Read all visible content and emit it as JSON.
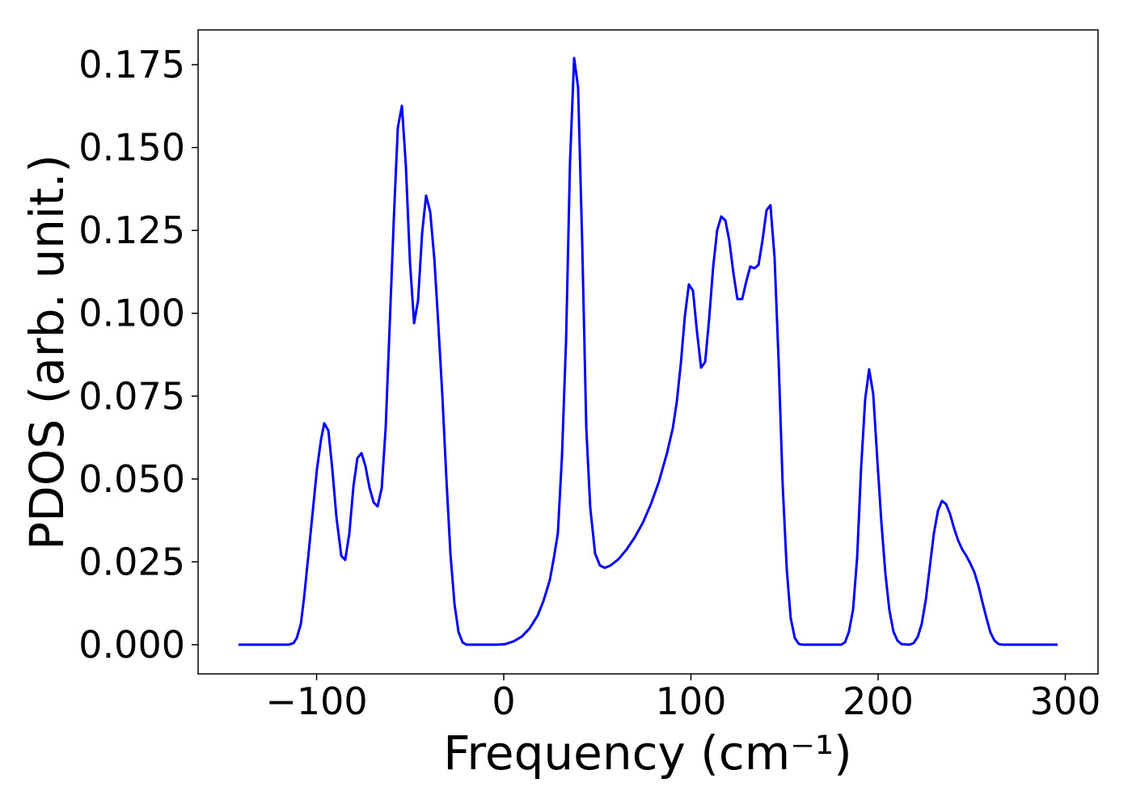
{
  "chart_data": {
    "type": "line",
    "xlabel": "Frequency (cm⁻¹)",
    "ylabel": "PDOS (arb. unit.)",
    "xlim": [
      -163.3,
      317.5
    ],
    "ylim": [
      -0.0088,
      0.1855
    ],
    "xticks": [
      {
        "value": -100,
        "label": "−100"
      },
      0,
      100,
      200,
      300
    ],
    "yticks": [
      {
        "value": 0,
        "label": "0.000"
      },
      0.025,
      {
        "value": 0.05,
        "label": "0.050"
      },
      0.075,
      {
        "value": 0.1,
        "label": "0.100"
      },
      0.125,
      {
        "value": 0.15,
        "label": "0.150"
      },
      0.175
    ],
    "grid": false,
    "series": [
      {
        "color": "#0000ff",
        "x": [
          -141.7,
          -115,
          -112.3,
          -110.6,
          -108.4,
          -106.7,
          -104.5,
          -101.9,
          -99.8,
          -97.6,
          -95.9,
          -93.7,
          -91.6,
          -89.4,
          -86.8,
          -84.7,
          -82.5,
          -80.3,
          -78.2,
          -76.0,
          -73.9,
          -71.7,
          -69.5,
          -67.4,
          -65.2,
          -63.1,
          -60.9,
          -58.7,
          -56.6,
          -54.4,
          -52.3,
          -50.1,
          -47.9,
          -45.8,
          -43.6,
          -41.5,
          -39.3,
          -37.1,
          -35.0,
          -32.8,
          -30.7,
          -28.5,
          -26.3,
          -24.2,
          -22.0,
          -19.9,
          -3.5,
          0.9,
          5.2,
          9.5,
          13.8,
          18.1,
          21.2,
          24.6,
          26.8,
          28.9,
          31.1,
          33.3,
          35.4,
          37.6,
          39.7,
          41.9,
          44.1,
          46.2,
          48.8,
          51.4,
          54.0,
          57.0,
          61.3,
          65.7,
          70.0,
          74.3,
          78.6,
          82.9,
          87.3,
          90.3,
          92.4,
          94.6,
          96.8,
          98.9,
          101.1,
          103.2,
          105.4,
          107.6,
          109.7,
          111.9,
          114.0,
          116.2,
          118.4,
          120.5,
          122.7,
          124.8,
          127.4,
          129.6,
          131.7,
          133.9,
          136.1,
          138.2,
          140.4,
          142.5,
          144.7,
          146.9,
          149.0,
          151.2,
          153.3,
          155.5,
          157.7,
          159.8,
          180.1,
          182.3,
          184.4,
          186.6,
          188.8,
          190.9,
          193.1,
          195.2,
          197.4,
          199.6,
          201.7,
          203.9,
          206.0,
          208.2,
          210.4,
          212.5,
          216.8,
          219.0,
          221.2,
          223.3,
          225.5,
          227.7,
          229.8,
          232.0,
          234.1,
          236.3,
          238.4,
          240.6,
          242.8,
          244.9,
          247.1,
          249.2,
          251.4,
          253.6,
          255.7,
          257.9,
          260.0,
          262.2,
          264.4,
          266.5,
          295.9
        ],
        "values": [
          0,
          0,
          0.0005,
          0.002,
          0.0063,
          0.0141,
          0.0263,
          0.041,
          0.053,
          0.062,
          0.0668,
          0.0646,
          0.053,
          0.0385,
          0.0268,
          0.0256,
          0.0336,
          0.0478,
          0.0563,
          0.0578,
          0.0539,
          0.0473,
          0.0429,
          0.0417,
          0.0473,
          0.0653,
          0.097,
          0.129,
          0.156,
          0.1626,
          0.1445,
          0.1153,
          0.097,
          0.1038,
          0.1243,
          0.1355,
          0.1306,
          0.1165,
          0.097,
          0.0751,
          0.0507,
          0.0275,
          0.0122,
          0.0039,
          0.0007,
          0,
          0,
          0.0002,
          0.001,
          0.0024,
          0.0049,
          0.0088,
          0.0132,
          0.0195,
          0.0263,
          0.0336,
          0.0568,
          0.0921,
          0.1457,
          0.177,
          0.1682,
          0.1214,
          0.0653,
          0.0414,
          0.0275,
          0.0239,
          0.0232,
          0.0239,
          0.0258,
          0.0288,
          0.0324,
          0.0368,
          0.0424,
          0.0492,
          0.058,
          0.0653,
          0.0731,
          0.0848,
          0.0994,
          0.1087,
          0.1068,
          0.0946,
          0.0836,
          0.0853,
          0.0982,
          0.1141,
          0.125,
          0.1292,
          0.128,
          0.1219,
          0.1121,
          0.1043,
          0.1043,
          0.1097,
          0.1141,
          0.1136,
          0.1146,
          0.1219,
          0.1311,
          0.1326,
          0.1165,
          0.0848,
          0.0483,
          0.0227,
          0.008,
          0.002,
          0.0002,
          0,
          0,
          0.0007,
          0.0039,
          0.0105,
          0.0263,
          0.0531,
          0.0741,
          0.0831,
          0.0756,
          0.0556,
          0.0373,
          0.0214,
          0.0105,
          0.0039,
          0.0012,
          0.0002,
          0,
          0.0005,
          0.0024,
          0.0063,
          0.0136,
          0.0239,
          0.0336,
          0.0405,
          0.0434,
          0.0424,
          0.0395,
          0.0351,
          0.0314,
          0.0288,
          0.0268,
          0.0246,
          0.0219,
          0.0178,
          0.0129,
          0.008,
          0.0037,
          0.0012,
          0.0002,
          0,
          0
        ]
      }
    ]
  }
}
